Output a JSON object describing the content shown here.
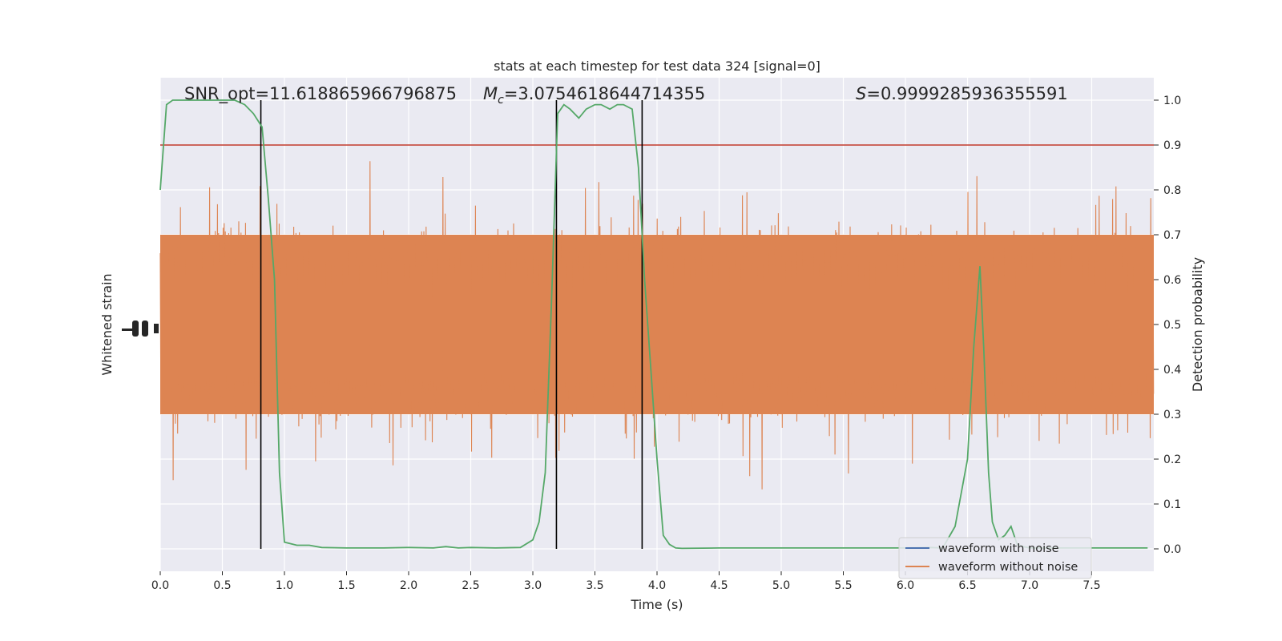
{
  "chart_data": {
    "type": "line",
    "title": "stats at each timestep for test data 324 [signal=0]",
    "xlabel": "Time (s)",
    "ylabel_left": "Whitened strain",
    "ylabel_right": "Detection probability",
    "xlim": [
      0,
      8
    ],
    "ylim_right": [
      -0.05,
      1.05
    ],
    "x_ticks": [
      0.0,
      0.5,
      1.0,
      1.5,
      2.0,
      2.5,
      3.0,
      3.5,
      4.0,
      4.5,
      5.0,
      5.5,
      6.0,
      6.5,
      7.0,
      7.5
    ],
    "x_tick_labels": [
      "0.0",
      "0.5",
      "1.0",
      "1.5",
      "2.0",
      "2.5",
      "3.0",
      "3.5",
      "4.0",
      "4.5",
      "5.0",
      "5.5",
      "6.0",
      "6.5",
      "7.0",
      "7.5"
    ],
    "y_right_ticks": [
      0.0,
      0.1,
      0.2,
      0.3,
      0.4,
      0.5,
      0.6,
      0.7,
      0.8,
      0.9,
      1.0
    ],
    "y_right_tick_labels": [
      "0.0",
      "0.1",
      "0.2",
      "0.3",
      "0.4",
      "0.5",
      "0.6",
      "0.7",
      "0.8",
      "0.9",
      "1.0"
    ],
    "grid": true,
    "legend_placement": "lower-right",
    "annotations": {
      "snr_text": "SNR_opt=11.618865966796875",
      "mc_symbol": "M",
      "mc_sub": "c",
      "mc_value": "=3.0754618644714355",
      "s_symbol": "S",
      "s_value": "=0.9999285936355591"
    },
    "threshold": {
      "value": 0.9,
      "color": "#c0392b"
    },
    "vertical_lines": [
      0.81,
      3.19,
      3.88
    ],
    "series": [
      {
        "name": "waveform with noise",
        "color": "#4c72b0"
      },
      {
        "name": "waveform without noise",
        "color": "#dd8452"
      }
    ],
    "detection_probability": {
      "color": "#55a868",
      "x": [
        0.0,
        0.05,
        0.1,
        0.2,
        0.3,
        0.4,
        0.5,
        0.6,
        0.68,
        0.75,
        0.82,
        0.87,
        0.92,
        0.96,
        1.0,
        1.1,
        1.2,
        1.3,
        1.5,
        1.8,
        2.0,
        2.2,
        2.3,
        2.4,
        2.5,
        2.7,
        2.9,
        3.0,
        3.05,
        3.1,
        3.15,
        3.2,
        3.25,
        3.3,
        3.37,
        3.43,
        3.5,
        3.55,
        3.62,
        3.68,
        3.73,
        3.8,
        3.85,
        3.9,
        3.95,
        4.0,
        4.05,
        4.1,
        4.15,
        4.2,
        4.5,
        5.0,
        5.5,
        6.0,
        6.2,
        6.3,
        6.4,
        6.5,
        6.55,
        6.6,
        6.63,
        6.67,
        6.7,
        6.75,
        6.8,
        6.85,
        6.9,
        6.95,
        7.0,
        7.5,
        7.95
      ],
      "y": [
        0.8,
        0.99,
        1.0,
        1.0,
        1.0,
        1.0,
        1.0,
        1.0,
        0.99,
        0.97,
        0.94,
        0.78,
        0.6,
        0.17,
        0.015,
        0.008,
        0.008,
        0.003,
        0.002,
        0.002,
        0.003,
        0.002,
        0.005,
        0.002,
        0.003,
        0.002,
        0.003,
        0.02,
        0.06,
        0.17,
        0.55,
        0.97,
        0.99,
        0.98,
        0.96,
        0.98,
        0.99,
        0.99,
        0.98,
        0.99,
        0.99,
        0.98,
        0.85,
        0.6,
        0.4,
        0.2,
        0.03,
        0.01,
        0.002,
        0.001,
        0.002,
        0.002,
        0.002,
        0.002,
        0.003,
        0.002,
        0.05,
        0.2,
        0.45,
        0.63,
        0.45,
        0.17,
        0.06,
        0.02,
        0.03,
        0.05,
        0.01,
        0.005,
        0.002,
        0.002,
        0.002
      ]
    }
  }
}
